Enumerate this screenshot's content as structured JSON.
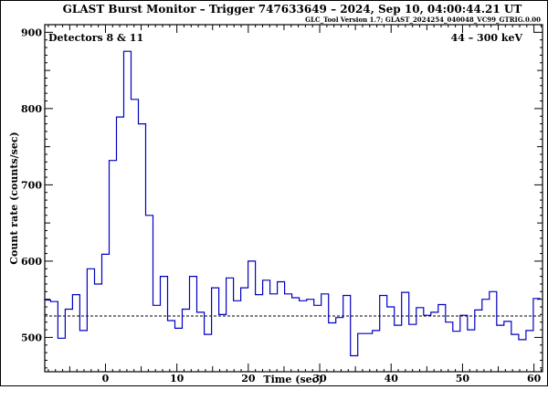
{
  "chart_data": {
    "type": "line",
    "title": "GLAST Burst Monitor  –  Trigger 747633649  –  2024, Sep 10, 04:00:44.21 UT",
    "subtitle": "GLC_Tool Version 1.7; GLAST_2024254_040048_VC99_GTRIG.0.00",
    "xlabel": "Time (sec)",
    "ylabel": "Count rate (counts/sec)",
    "annotation_left": "Detectors 8 & 11",
    "annotation_right": "44 – 300 keV",
    "xlim": [
      -8.5,
      61.2
    ],
    "ylim": [
      455,
      910
    ],
    "x_ticks": [
      0,
      10,
      20,
      30,
      40,
      50,
      60
    ],
    "y_ticks": [
      500,
      600,
      700,
      800,
      900
    ],
    "background_level": 528,
    "grid": false,
    "legend": "none",
    "line_color": "#0000c0",
    "bin_width": 1.024,
    "bin_start": -8.704,
    "series": [
      {
        "values": [
          549,
          547,
          499,
          537,
          556,
          509,
          590,
          570,
          609,
          732,
          789,
          875,
          812,
          780,
          660,
          542,
          580,
          522,
          512,
          537,
          580,
          533,
          504,
          565,
          530,
          578,
          548,
          565,
          600,
          556,
          575,
          557,
          573,
          557,
          552,
          548,
          550,
          542,
          557,
          519,
          526,
          555,
          476,
          505,
          505,
          509,
          555,
          540,
          516,
          559,
          517,
          539,
          529,
          533,
          543,
          520,
          508,
          529,
          510,
          536,
          550,
          560,
          516,
          521,
          504,
          497,
          509,
          551
        ]
      }
    ]
  }
}
